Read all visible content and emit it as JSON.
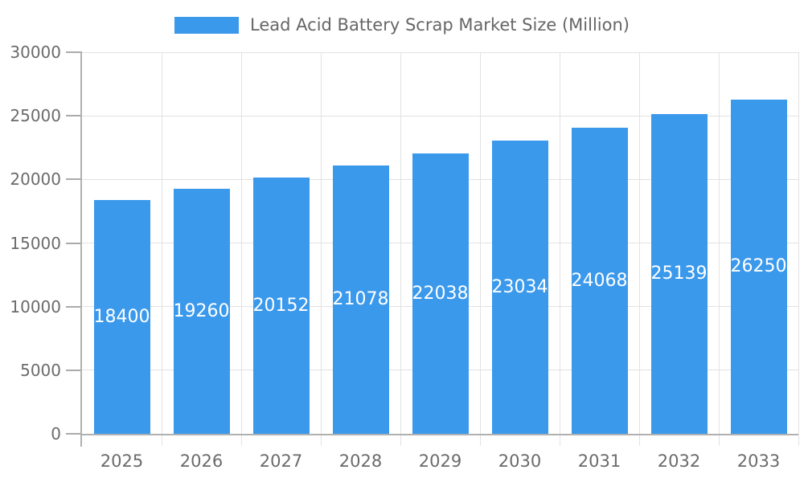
{
  "chart_data": {
    "type": "bar",
    "title": "Lead Acid Battery Scrap Market Size (Million)",
    "categories": [
      "2025",
      "2026",
      "2027",
      "2028",
      "2029",
      "2030",
      "2031",
      "2032",
      "2033"
    ],
    "values": [
      18400,
      19260,
      20152,
      21078,
      22038,
      23034,
      24068,
      25139,
      26250
    ],
    "xlabel": "",
    "ylabel": "",
    "ylim": [
      0,
      30000
    ],
    "ytick_step": 5000,
    "yticks": [
      "0",
      "5000",
      "10000",
      "15000",
      "20000",
      "25000",
      "30000"
    ],
    "grid": true,
    "legend_position": "top",
    "value_labels": "inside-center",
    "colors": {
      "bar": "#3B99EC",
      "bar_label_text": "#FFFFFF",
      "axis_text": "#6B6B6B",
      "legend_text": "#666666",
      "gridline": "#E2E2E2",
      "axis_line": "#B0B0B0",
      "y_tick": "#ABABAB",
      "background": "#FFFFFF"
    }
  }
}
